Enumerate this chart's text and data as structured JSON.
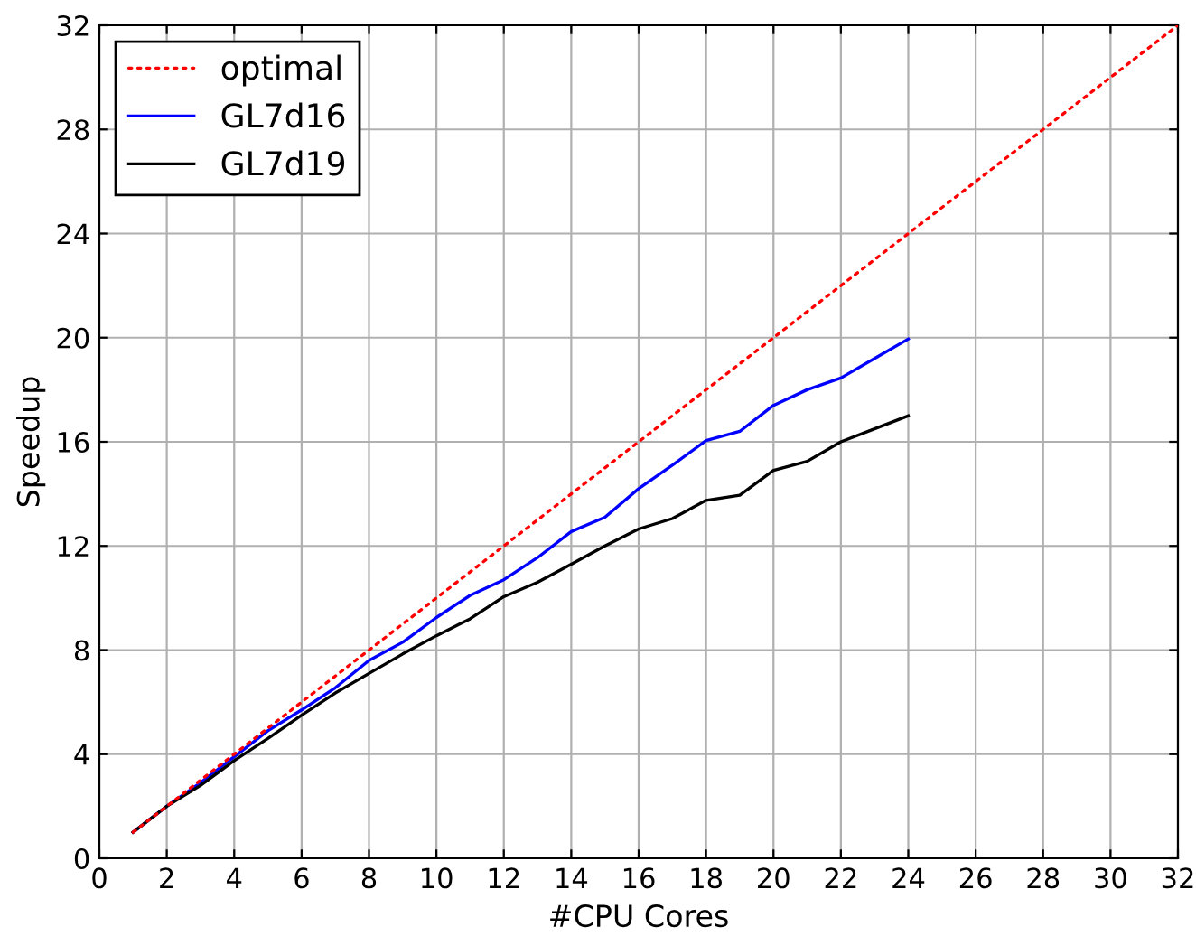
{
  "chart_data": {
    "type": "line",
    "xlabel": "#CPU Cores",
    "ylabel": "Speedup",
    "xlim": [
      0,
      32
    ],
    "ylim": [
      0,
      32
    ],
    "xticks": [
      0,
      2,
      4,
      6,
      8,
      10,
      12,
      14,
      16,
      18,
      20,
      22,
      24,
      26,
      28,
      30,
      32
    ],
    "yticks": [
      0,
      4,
      8,
      12,
      16,
      20,
      24,
      28,
      32
    ],
    "grid": true,
    "legend": "top left",
    "series": [
      {
        "name": "optimal",
        "color": "#ff0000",
        "line_style": "dotted",
        "x": [
          1,
          32
        ],
        "values": [
          1,
          32
        ]
      },
      {
        "name": "GL7d16",
        "color": "#0000ff",
        "line_style": "solid",
        "x": [
          1,
          2,
          3,
          4,
          5,
          6,
          7,
          8,
          9,
          10,
          11,
          12,
          13,
          14,
          15,
          16,
          17,
          18,
          19,
          20,
          21,
          22,
          23,
          24
        ],
        "values": [
          1.0,
          2.0,
          2.9,
          3.9,
          4.9,
          5.7,
          6.55,
          7.6,
          8.3,
          9.25,
          10.1,
          10.7,
          11.55,
          12.55,
          13.1,
          14.2,
          15.1,
          16.05,
          16.4,
          17.4,
          18.0,
          18.45,
          19.2,
          19.95
        ]
      },
      {
        "name": "GL7d19",
        "color": "#000000",
        "line_style": "solid",
        "x": [
          1,
          2,
          3,
          4,
          5,
          6,
          7,
          8,
          9,
          10,
          11,
          12,
          13,
          14,
          15,
          16,
          17,
          18,
          19,
          20,
          21,
          22,
          23,
          24
        ],
        "values": [
          1.0,
          2.0,
          2.8,
          3.75,
          4.6,
          5.5,
          6.35,
          7.1,
          7.85,
          8.55,
          9.2,
          10.05,
          10.6,
          11.3,
          12.0,
          12.65,
          13.05,
          13.75,
          13.95,
          14.9,
          15.25,
          16.0,
          16.5,
          17.0
        ]
      }
    ]
  }
}
